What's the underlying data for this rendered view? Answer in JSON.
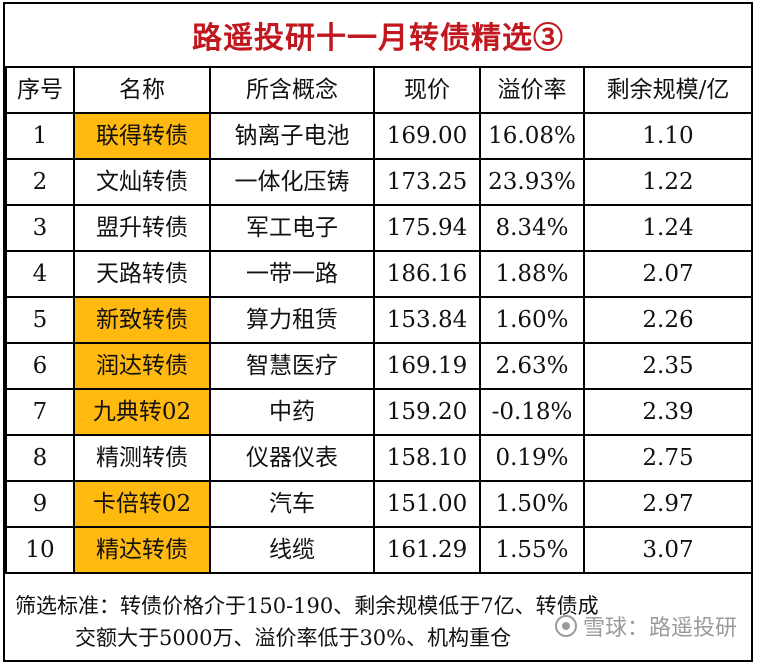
{
  "title": "路遥投研十一月转债精选③",
  "columns": [
    "序号",
    "名称",
    "所含概念",
    "现价",
    "溢价率",
    "剩余规模/亿"
  ],
  "rows": [
    {
      "idx": "1",
      "name": "联得转债",
      "concept": "钠离子电池",
      "price": "169.00",
      "premium": "16.08%",
      "scale": "1.10",
      "highlight": true
    },
    {
      "idx": "2",
      "name": "文灿转债",
      "concept": "一体化压铸",
      "price": "173.25",
      "premium": "23.93%",
      "scale": "1.22",
      "highlight": false
    },
    {
      "idx": "3",
      "name": "盟升转债",
      "concept": "军工电子",
      "price": "175.94",
      "premium": "8.34%",
      "scale": "1.24",
      "highlight": false
    },
    {
      "idx": "4",
      "name": "天路转债",
      "concept": "一带一路",
      "price": "186.16",
      "premium": "1.88%",
      "scale": "2.07",
      "highlight": false
    },
    {
      "idx": "5",
      "name": "新致转债",
      "concept": "算力租赁",
      "price": "153.84",
      "premium": "1.60%",
      "scale": "2.26",
      "highlight": true
    },
    {
      "idx": "6",
      "name": "润达转债",
      "concept": "智慧医疗",
      "price": "169.19",
      "premium": "2.63%",
      "scale": "2.35",
      "highlight": true
    },
    {
      "idx": "7",
      "name": "九典转02",
      "concept": "中药",
      "price": "159.20",
      "premium": "-0.18%",
      "scale": "2.39",
      "highlight": true
    },
    {
      "idx": "8",
      "name": "精测转债",
      "concept": "仪器仪表",
      "price": "158.10",
      "premium": "0.19%",
      "scale": "2.75",
      "highlight": false
    },
    {
      "idx": "9",
      "name": "卡倍转02",
      "concept": "汽车",
      "price": "151.00",
      "premium": "1.50%",
      "scale": "2.97",
      "highlight": true
    },
    {
      "idx": "10",
      "name": "精达转债",
      "concept": "线缆",
      "price": "161.29",
      "premium": "1.55%",
      "scale": "3.07",
      "highlight": true
    }
  ],
  "footer": {
    "line1": "筛选标准：转债价格介于150-190、剩余规模低于7亿、转债成",
    "line2": "交额大于5000万、溢价率低于30%、机构重仓"
  },
  "watermark": "雪球：路遥投研",
  "colors": {
    "title": "#c0181e",
    "highlight": "#ffb90f"
  }
}
